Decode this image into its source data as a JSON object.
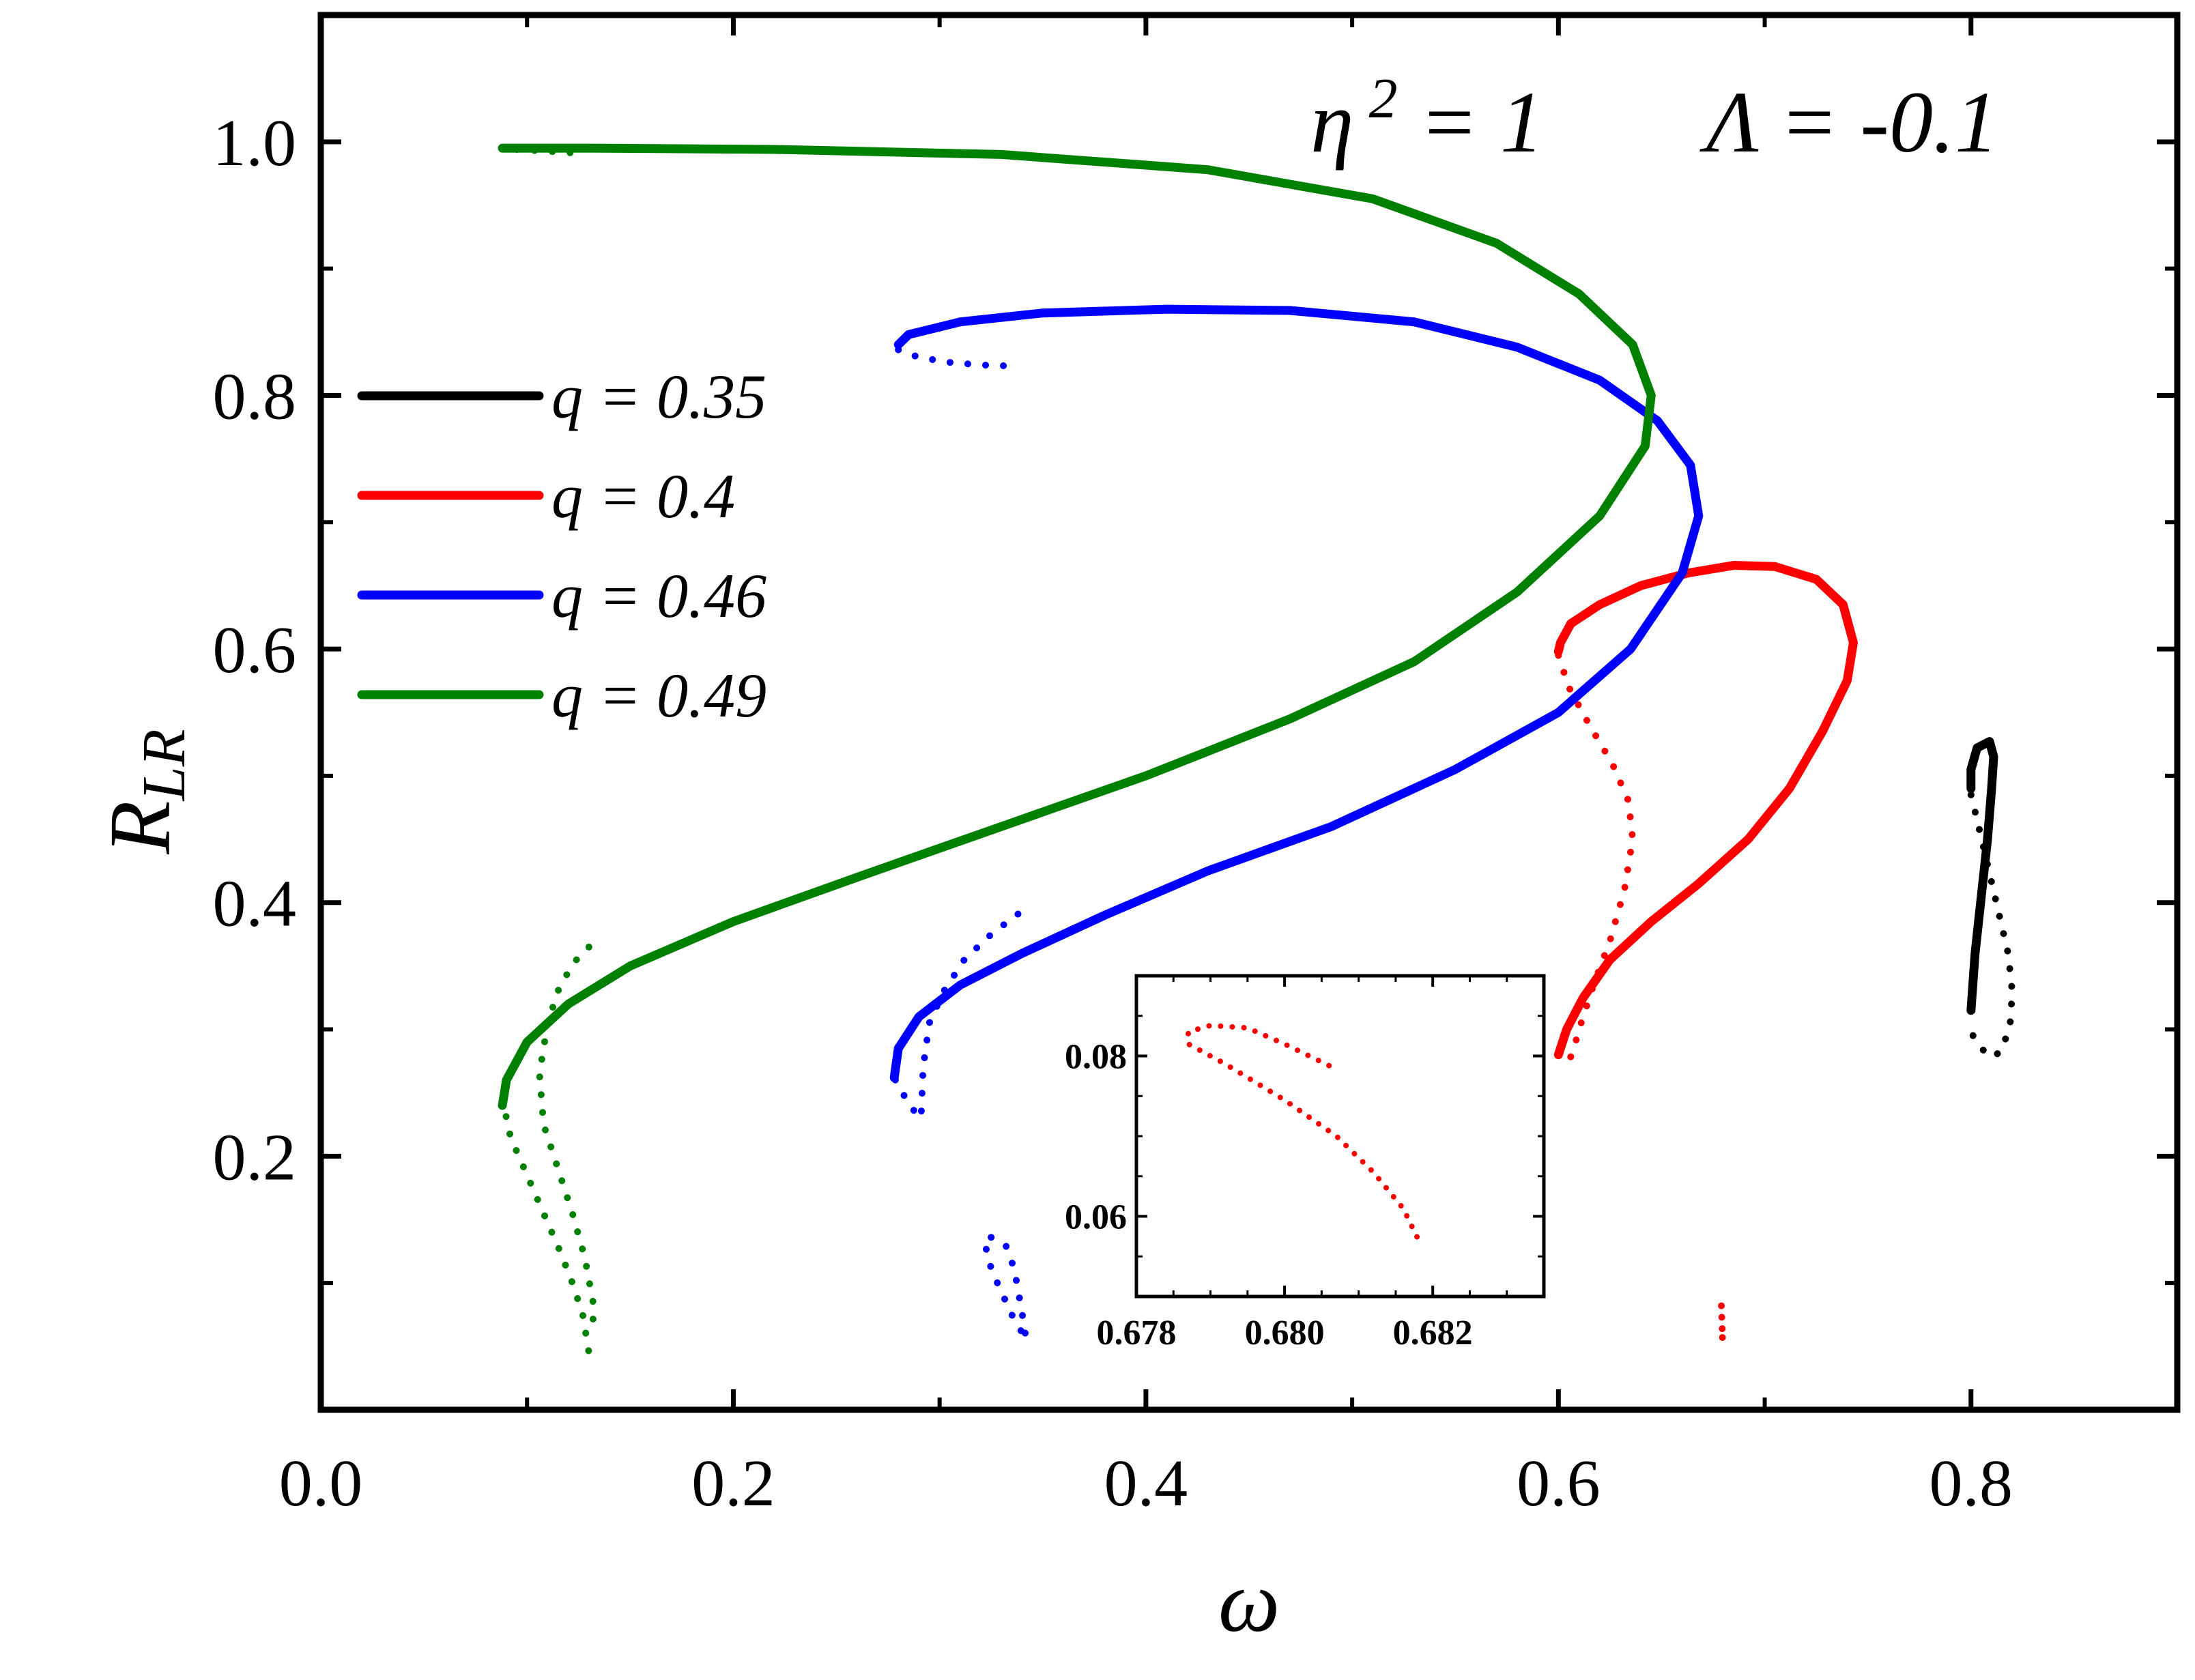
{
  "chart_data": {
    "type": "line",
    "xlabel": "ω",
    "ylabel_main": "R",
    "ylabel_sub": "LR",
    "xlim": [
      0.0,
      0.9
    ],
    "ylim": [
      0.0,
      1.1
    ],
    "x_ticks": [
      "0.0",
      "0.2",
      "0.4",
      "0.6",
      "0.8"
    ],
    "y_ticks": [
      "0.2",
      "0.4",
      "0.6",
      "0.8",
      "1.0"
    ],
    "params": {
      "eta": "η",
      "eta_sup": "2",
      "eta_rest": " = 1",
      "lambda": "Λ = -0.1"
    },
    "legend_position": "upper-left",
    "series": [
      {
        "name": "q = 0.35",
        "color": "#000000",
        "solid": [
          [
            0.8,
            0.315
          ],
          [
            0.802,
            0.36
          ],
          [
            0.805,
            0.405
          ],
          [
            0.808,
            0.45
          ],
          [
            0.81,
            0.49
          ],
          [
            0.811,
            0.515
          ],
          [
            0.809,
            0.527
          ],
          [
            0.803,
            0.522
          ],
          [
            0.8,
            0.505
          ],
          [
            0.8,
            0.49
          ]
        ],
        "dotted": [
          [
            0.8,
            0.485
          ],
          [
            0.803,
            0.465
          ],
          [
            0.808,
            0.43
          ],
          [
            0.813,
            0.395
          ],
          [
            0.818,
            0.36
          ],
          [
            0.82,
            0.33
          ],
          [
            0.819,
            0.305
          ],
          [
            0.815,
            0.283
          ],
          [
            0.81,
            0.278
          ],
          [
            0.805,
            0.285
          ],
          [
            0.801,
            0.295
          ],
          [
            0.8,
            0.305
          ]
        ]
      },
      {
        "name": "q = 0.4",
        "color": "#ff0000",
        "solid": [
          [
            0.6,
            0.28
          ],
          [
            0.604,
            0.3
          ],
          [
            0.612,
            0.325
          ],
          [
            0.625,
            0.355
          ],
          [
            0.645,
            0.385
          ],
          [
            0.668,
            0.415
          ],
          [
            0.692,
            0.45
          ],
          [
            0.712,
            0.49
          ],
          [
            0.728,
            0.535
          ],
          [
            0.74,
            0.575
          ],
          [
            0.743,
            0.605
          ],
          [
            0.738,
            0.635
          ],
          [
            0.725,
            0.655
          ],
          [
            0.705,
            0.665
          ],
          [
            0.685,
            0.666
          ],
          [
            0.663,
            0.66
          ],
          [
            0.64,
            0.65
          ],
          [
            0.62,
            0.635
          ],
          [
            0.606,
            0.62
          ],
          [
            0.601,
            0.605
          ],
          [
            0.6,
            0.598
          ]
        ],
        "dotted": [
          [
            0.6,
            0.595
          ],
          [
            0.605,
            0.57
          ],
          [
            0.615,
            0.54
          ],
          [
            0.626,
            0.51
          ],
          [
            0.634,
            0.48
          ],
          [
            0.636,
            0.45
          ],
          [
            0.632,
            0.41
          ],
          [
            0.625,
            0.37
          ],
          [
            0.617,
            0.335
          ],
          [
            0.61,
            0.3
          ],
          [
            0.607,
            0.282
          ],
          [
            0.605,
            0.275
          ]
        ],
        "dotted_small": [
          [
            0.6788,
            0.082
          ],
          [
            0.6793,
            0.084
          ],
          [
            0.6797,
            0.0838
          ],
          [
            0.681,
            0.0788
          ]
        ]
      },
      {
        "name": "q = 0.46",
        "color": "#0000ff",
        "solid": [
          [
            0.278,
            0.262
          ],
          [
            0.28,
            0.285
          ],
          [
            0.29,
            0.31
          ],
          [
            0.31,
            0.335
          ],
          [
            0.34,
            0.36
          ],
          [
            0.38,
            0.39
          ],
          [
            0.43,
            0.425
          ],
          [
            0.49,
            0.46
          ],
          [
            0.55,
            0.505
          ],
          [
            0.6,
            0.55
          ],
          [
            0.635,
            0.6
          ],
          [
            0.66,
            0.66
          ],
          [
            0.668,
            0.705
          ],
          [
            0.664,
            0.745
          ],
          [
            0.648,
            0.78
          ],
          [
            0.62,
            0.812
          ],
          [
            0.58,
            0.838
          ],
          [
            0.53,
            0.858
          ],
          [
            0.47,
            0.867
          ],
          [
            0.41,
            0.868
          ],
          [
            0.35,
            0.865
          ],
          [
            0.31,
            0.858
          ],
          [
            0.285,
            0.848
          ],
          [
            0.28,
            0.84
          ]
        ],
        "dotted": [
          [
            0.28,
            0.836
          ],
          [
            0.29,
            0.83
          ],
          [
            0.305,
            0.826
          ],
          [
            0.32,
            0.824
          ],
          [
            0.338,
            0.823
          ]
        ],
        "dotted2": [
          [
            0.338,
            0.391
          ],
          [
            0.325,
            0.375
          ],
          [
            0.312,
            0.355
          ],
          [
            0.302,
            0.33
          ],
          [
            0.295,
            0.305
          ],
          [
            0.292,
            0.27
          ],
          [
            0.291,
            0.23
          ],
          [
            0.287,
            0.237
          ],
          [
            0.28,
            0.255
          ],
          [
            0.278,
            0.262
          ]
        ],
        "dotted3": [
          [
            0.325,
            0.136
          ],
          [
            0.332,
            0.13
          ],
          [
            0.336,
            0.112
          ],
          [
            0.338,
            0.095
          ],
          [
            0.34,
            0.076
          ],
          [
            0.342,
            0.055
          ],
          [
            0.335,
            0.075
          ],
          [
            0.328,
            0.1
          ],
          [
            0.323,
            0.12
          ],
          [
            0.322,
            0.136
          ]
        ]
      },
      {
        "name": "q = 0.49",
        "color": "#008000",
        "solid": [
          [
            0.088,
            0.24
          ],
          [
            0.09,
            0.26
          ],
          [
            0.1,
            0.29
          ],
          [
            0.12,
            0.32
          ],
          [
            0.15,
            0.35
          ],
          [
            0.2,
            0.385
          ],
          [
            0.26,
            0.42
          ],
          [
            0.33,
            0.46
          ],
          [
            0.4,
            0.5
          ],
          [
            0.47,
            0.545
          ],
          [
            0.53,
            0.59
          ],
          [
            0.58,
            0.645
          ],
          [
            0.62,
            0.705
          ],
          [
            0.642,
            0.76
          ],
          [
            0.645,
            0.8
          ],
          [
            0.636,
            0.84
          ],
          [
            0.61,
            0.88
          ],
          [
            0.57,
            0.92
          ],
          [
            0.51,
            0.955
          ],
          [
            0.43,
            0.978
          ],
          [
            0.33,
            0.99
          ],
          [
            0.22,
            0.994
          ],
          [
            0.13,
            0.995
          ],
          [
            0.088,
            0.995
          ]
        ],
        "dotted": [
          [
            0.095,
            0.994
          ],
          [
            0.105,
            0.993
          ],
          [
            0.115,
            0.992
          ],
          [
            0.125,
            0.991
          ]
        ],
        "dotted2": [
          [
            0.088,
            0.245
          ],
          [
            0.092,
            0.215
          ],
          [
            0.1,
            0.185
          ],
          [
            0.108,
            0.155
          ],
          [
            0.116,
            0.125
          ],
          [
            0.122,
            0.1
          ],
          [
            0.127,
            0.075
          ],
          [
            0.13,
            0.045
          ]
        ],
        "dotted3": [
          [
            0.13,
            0.365
          ],
          [
            0.124,
            0.355
          ],
          [
            0.116,
            0.335
          ],
          [
            0.11,
            0.305
          ],
          [
            0.106,
            0.265
          ],
          [
            0.108,
            0.225
          ],
          [
            0.115,
            0.19
          ],
          [
            0.122,
            0.155
          ],
          [
            0.128,
            0.12
          ],
          [
            0.132,
            0.085
          ],
          [
            0.132,
            0.065
          ]
        ]
      }
    ],
    "red_marks": [
      [
        0.679,
        0.085
      ],
      [
        0.68,
        0.075
      ],
      [
        0.681,
        0.066
      ],
      [
        0.681,
        0.058
      ]
    ],
    "inset": {
      "xlim": [
        0.678,
        0.6835
      ],
      "ylim": [
        0.05,
        0.09
      ],
      "x_ticks": [
        "0.678",
        "0.680",
        "0.682"
      ],
      "y_ticks": [
        "0.06",
        "0.08"
      ],
      "points": [
        [
          0.6806,
          0.0788
        ],
        [
          0.68,
          0.0815
        ],
        [
          0.6795,
          0.0835
        ],
        [
          0.679,
          0.0838
        ],
        [
          0.6787,
          0.083
        ],
        [
          0.6787,
          0.0815
        ],
        [
          0.6792,
          0.079
        ],
        [
          0.68,
          0.0745
        ],
        [
          0.6807,
          0.07
        ],
        [
          0.6812,
          0.0655
        ],
        [
          0.6816,
          0.061
        ],
        [
          0.6818,
          0.0572
        ]
      ]
    }
  }
}
